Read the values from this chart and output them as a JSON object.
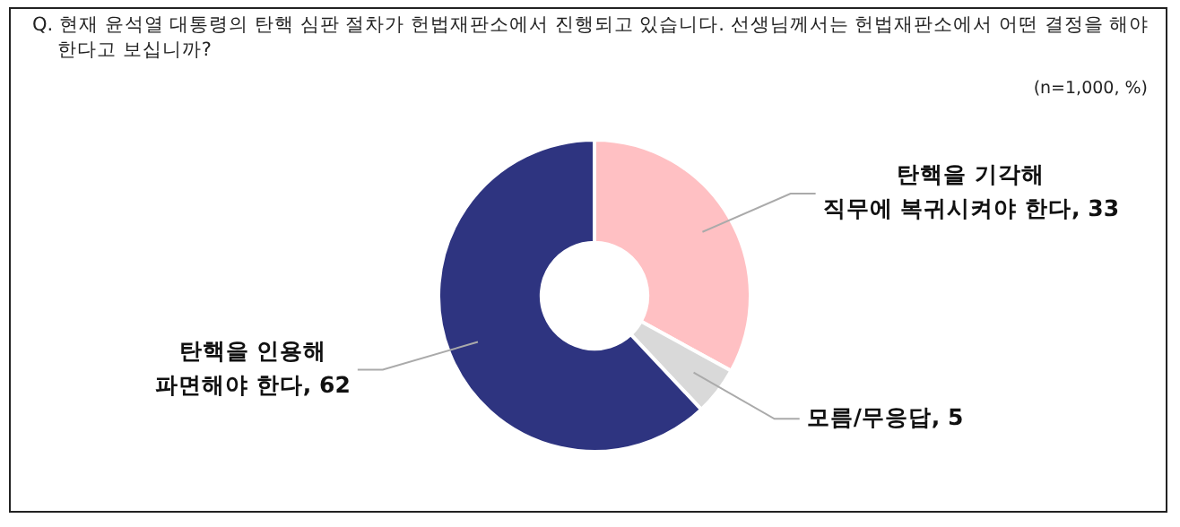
{
  "chart_data": {
    "type": "donut",
    "title": "Q. 현재 윤석열 대통령의 탄핵 심판 절차가 헌법재판소에서 진행되고 있습니다. 선생님께서는 헌법재판소에서 어떤 결정을 해야 한다고 보십니까?",
    "subtitle": "(n=1,000, %)",
    "categories": [
      "탄핵을 기각해 직무에 복귀시켜야 한다, 33",
      "모름/무응답, 5",
      "탄핵을 인용해 파면해야 한다, 62"
    ],
    "values": [
      33,
      5,
      62
    ],
    "colors": [
      "#ffc0c3",
      "#d9d9d9",
      "#2e3480"
    ],
    "legend": false
  }
}
